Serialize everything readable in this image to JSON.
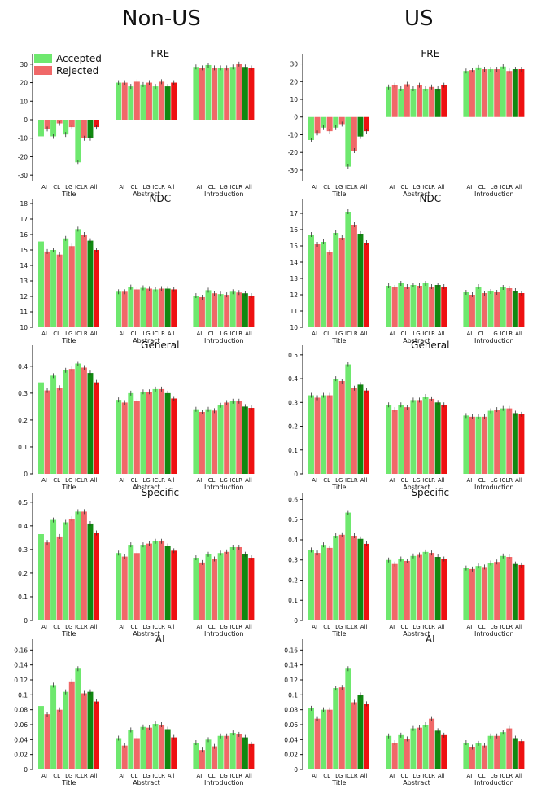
{
  "figure": {
    "columns": [
      "Non-US",
      "US"
    ],
    "legend": [
      {
        "label": "Accepted",
        "color": "#6ee86e"
      },
      {
        "label": "Rejected",
        "color": "#f06868"
      }
    ],
    "colors": {
      "accepted": "#6ee86e",
      "rejected": "#f06868",
      "accepted_all": "#118811",
      "rejected_all": "#ee1111",
      "error_bar": "#333333"
    },
    "x_tick_labels": [
      "AI",
      "CL",
      "LG",
      "ICLR",
      "All"
    ],
    "groups": [
      "Title",
      "Abstract",
      "Introduction"
    ]
  },
  "chart_data": [
    {
      "type": "bar",
      "title": "FRE",
      "panel": "Non-US",
      "yticks": [
        -30,
        -20,
        -10,
        0,
        10,
        20,
        30
      ],
      "ylim": [
        -33,
        33
      ],
      "groups": [
        "Title",
        "Abstract",
        "Introduction"
      ],
      "categories": [
        "AI",
        "CL",
        "LG",
        "ICLR",
        "All"
      ],
      "series": [
        {
          "name": "Accepted",
          "values": [
            [
              -9,
              -9,
              -8,
              -23,
              -10
            ],
            [
              20,
              18,
              19,
              18,
              18
            ],
            [
              28.5,
              29.5,
              28,
              28.5,
              28.5
            ]
          ]
        },
        {
          "name": "Rejected",
          "values": [
            [
              -5,
              -2,
              -4,
              -10,
              -4
            ],
            [
              20,
              20.5,
              20,
              20.5,
              20
            ],
            [
              28,
              28,
              28,
              30,
              28
            ]
          ]
        }
      ]
    },
    {
      "type": "bar",
      "title": "FRE",
      "panel": "US",
      "yticks": [
        -30,
        -20,
        -10,
        0,
        10,
        20,
        30
      ],
      "ylim": [
        -36,
        33
      ],
      "groups": [
        "Title",
        "Abstract",
        "Introduction"
      ],
      "categories": [
        "AI",
        "CL",
        "LG",
        "ICLR",
        "All"
      ],
      "series": [
        {
          "name": "Accepted",
          "values": [
            [
              -13,
              -6,
              -6,
              -28,
              -11
            ],
            [
              17,
              16,
              16,
              16,
              16
            ],
            [
              26,
              28,
              27,
              28.5,
              27
            ]
          ]
        },
        {
          "name": "Rejected",
          "values": [
            [
              -9,
              -8,
              -4,
              -19,
              -8
            ],
            [
              18,
              18.5,
              18,
              17,
              18
            ],
            [
              26.5,
              27,
              27,
              26,
              27
            ]
          ]
        }
      ]
    },
    {
      "type": "bar",
      "title": "NDC",
      "panel": "Non-US",
      "yticks": [
        10,
        11,
        12,
        13,
        14,
        15,
        16,
        17,
        18
      ],
      "ylim": [
        10,
        18
      ],
      "groups": [
        "Title",
        "Abstract",
        "Introduction"
      ],
      "categories": [
        "AI",
        "CL",
        "LG",
        "ICLR",
        "All"
      ],
      "series": [
        {
          "name": "Accepted",
          "values": [
            [
              15.55,
              15.0,
              15.75,
              16.35,
              15.6
            ],
            [
              12.3,
              12.6,
              12.55,
              12.45,
              12.5
            ],
            [
              12.05,
              12.4,
              12.15,
              12.3,
              12.2
            ]
          ]
        },
        {
          "name": "Rejected",
          "values": [
            [
              14.9,
              14.7,
              15.25,
              16.0,
              15.0
            ],
            [
              12.3,
              12.45,
              12.5,
              12.5,
              12.45
            ],
            [
              11.95,
              12.2,
              12.1,
              12.25,
              12.05
            ]
          ]
        }
      ]
    },
    {
      "type": "bar",
      "title": "NDC",
      "panel": "US",
      "yticks": [
        10,
        11,
        12,
        13,
        14,
        15,
        16,
        17
      ],
      "ylim": [
        10,
        17.6
      ],
      "groups": [
        "Title",
        "Abstract",
        "Introduction"
      ],
      "categories": [
        "AI",
        "CL",
        "LG",
        "ICLR",
        "All"
      ],
      "series": [
        {
          "name": "Accepted",
          "values": [
            [
              15.7,
              15.25,
              15.8,
              17.1,
              15.75
            ],
            [
              12.55,
              12.7,
              12.6,
              12.7,
              12.6
            ],
            [
              12.15,
              12.5,
              12.2,
              12.45,
              12.25
            ]
          ]
        },
        {
          "name": "Rejected",
          "values": [
            [
              15.1,
              14.6,
              15.5,
              16.3,
              15.2
            ],
            [
              12.45,
              12.5,
              12.55,
              12.5,
              12.5
            ],
            [
              12.0,
              12.1,
              12.15,
              12.4,
              12.1
            ]
          ]
        }
      ]
    },
    {
      "type": "bar",
      "title": "General",
      "panel": "Non-US",
      "yticks": [
        0.0,
        0.1,
        0.2,
        0.3,
        0.4
      ],
      "ylim": [
        0,
        0.46
      ],
      "groups": [
        "Title",
        "Abstract",
        "Introduction"
      ],
      "categories": [
        "AI",
        "CL",
        "LG",
        "ICLR",
        "All"
      ],
      "series": [
        {
          "name": "Accepted",
          "values": [
            [
              0.34,
              0.365,
              0.385,
              0.41,
              0.375
            ],
            [
              0.275,
              0.3,
              0.305,
              0.315,
              0.3
            ],
            [
              0.24,
              0.24,
              0.255,
              0.27,
              0.25
            ]
          ]
        },
        {
          "name": "Rejected",
          "values": [
            [
              0.31,
              0.32,
              0.39,
              0.395,
              0.34
            ],
            [
              0.265,
              0.27,
              0.305,
              0.315,
              0.28
            ],
            [
              0.23,
              0.235,
              0.265,
              0.27,
              0.245
            ]
          ]
        }
      ]
    },
    {
      "type": "bar",
      "title": "General",
      "panel": "US",
      "yticks": [
        0.0,
        0.1,
        0.2,
        0.3,
        0.4,
        0.5
      ],
      "ylim": [
        0,
        0.52
      ],
      "groups": [
        "Title",
        "Abstract",
        "Introduction"
      ],
      "categories": [
        "AI",
        "CL",
        "LG",
        "ICLR",
        "All"
      ],
      "series": [
        {
          "name": "Accepted",
          "values": [
            [
              0.33,
              0.33,
              0.4,
              0.46,
              0.375
            ],
            [
              0.29,
              0.29,
              0.31,
              0.325,
              0.3
            ],
            [
              0.245,
              0.24,
              0.265,
              0.275,
              0.255
            ]
          ]
        },
        {
          "name": "Rejected",
          "values": [
            [
              0.32,
              0.33,
              0.39,
              0.36,
              0.35
            ],
            [
              0.27,
              0.28,
              0.31,
              0.315,
              0.29
            ],
            [
              0.24,
              0.24,
              0.27,
              0.275,
              0.25
            ]
          ]
        }
      ]
    },
    {
      "type": "bar",
      "title": "Specific",
      "panel": "Non-US",
      "yticks": [
        0.0,
        0.1,
        0.2,
        0.3,
        0.4,
        0.5
      ],
      "ylim": [
        0,
        0.52
      ],
      "groups": [
        "Title",
        "Abstract",
        "Introduction"
      ],
      "categories": [
        "AI",
        "CL",
        "LG",
        "ICLR",
        "All"
      ],
      "series": [
        {
          "name": "Accepted",
          "values": [
            [
              0.365,
              0.425,
              0.415,
              0.46,
              0.41
            ],
            [
              0.285,
              0.32,
              0.32,
              0.335,
              0.315
            ],
            [
              0.265,
              0.28,
              0.285,
              0.31,
              0.28
            ]
          ]
        },
        {
          "name": "Rejected",
          "values": [
            [
              0.33,
              0.355,
              0.43,
              0.46,
              0.37
            ],
            [
              0.27,
              0.285,
              0.325,
              0.335,
              0.295
            ],
            [
              0.245,
              0.26,
              0.29,
              0.31,
              0.265
            ]
          ]
        }
      ]
    },
    {
      "type": "bar",
      "title": "Specific",
      "panel": "US",
      "yticks": [
        0.0,
        0.1,
        0.2,
        0.3,
        0.4,
        0.5,
        0.6
      ],
      "ylim": [
        0,
        0.61
      ],
      "groups": [
        "Title",
        "Abstract",
        "Introduction"
      ],
      "categories": [
        "AI",
        "CL",
        "LG",
        "ICLR",
        "All"
      ],
      "series": [
        {
          "name": "Accepted",
          "values": [
            [
              0.35,
              0.375,
              0.42,
              0.535,
              0.405
            ],
            [
              0.3,
              0.305,
              0.32,
              0.34,
              0.315
            ],
            [
              0.26,
              0.27,
              0.285,
              0.32,
              0.28
            ]
          ]
        },
        {
          "name": "Rejected",
          "values": [
            [
              0.335,
              0.36,
              0.425,
              0.42,
              0.38
            ],
            [
              0.28,
              0.295,
              0.325,
              0.335,
              0.305
            ],
            [
              0.255,
              0.265,
              0.29,
              0.315,
              0.275
            ]
          ]
        }
      ]
    },
    {
      "type": "bar",
      "title": "AI",
      "panel": "Non-US",
      "yticks": [
        0.0,
        0.02,
        0.04,
        0.06,
        0.08,
        0.1,
        0.12,
        0.14,
        0.16
      ],
      "ylim": [
        0,
        0.168
      ],
      "groups": [
        "Title",
        "Abstract",
        "Introduction"
      ],
      "categories": [
        "AI",
        "CL",
        "LG",
        "ICLR",
        "All"
      ],
      "series": [
        {
          "name": "Accepted",
          "values": [
            [
              0.085,
              0.113,
              0.104,
              0.135,
              0.104
            ],
            [
              0.042,
              0.053,
              0.057,
              0.061,
              0.054
            ],
            [
              0.036,
              0.04,
              0.045,
              0.049,
              0.043
            ]
          ]
        },
        {
          "name": "Rejected",
          "values": [
            [
              0.074,
              0.08,
              0.118,
              0.102,
              0.091
            ],
            [
              0.032,
              0.042,
              0.056,
              0.06,
              0.043
            ],
            [
              0.026,
              0.031,
              0.045,
              0.047,
              0.034
            ]
          ]
        }
      ]
    },
    {
      "type": "bar",
      "title": "AI",
      "panel": "US",
      "yticks": [
        0.0,
        0.02,
        0.04,
        0.06,
        0.08,
        0.1,
        0.12,
        0.14,
        0.16
      ],
      "ylim": [
        0,
        0.168
      ],
      "groups": [
        "Title",
        "Abstract",
        "Introduction"
      ],
      "categories": [
        "AI",
        "CL",
        "LG",
        "ICLR",
        "All"
      ],
      "series": [
        {
          "name": "Accepted",
          "values": [
            [
              0.082,
              0.08,
              0.109,
              0.135,
              0.1
            ],
            [
              0.045,
              0.046,
              0.055,
              0.06,
              0.052
            ],
            [
              0.036,
              0.035,
              0.045,
              0.05,
              0.042
            ]
          ]
        },
        {
          "name": "Rejected",
          "values": [
            [
              0.068,
              0.08,
              0.11,
              0.09,
              0.088
            ],
            [
              0.036,
              0.041,
              0.056,
              0.068,
              0.046
            ],
            [
              0.03,
              0.032,
              0.045,
              0.055,
              0.038
            ]
          ]
        }
      ]
    }
  ]
}
